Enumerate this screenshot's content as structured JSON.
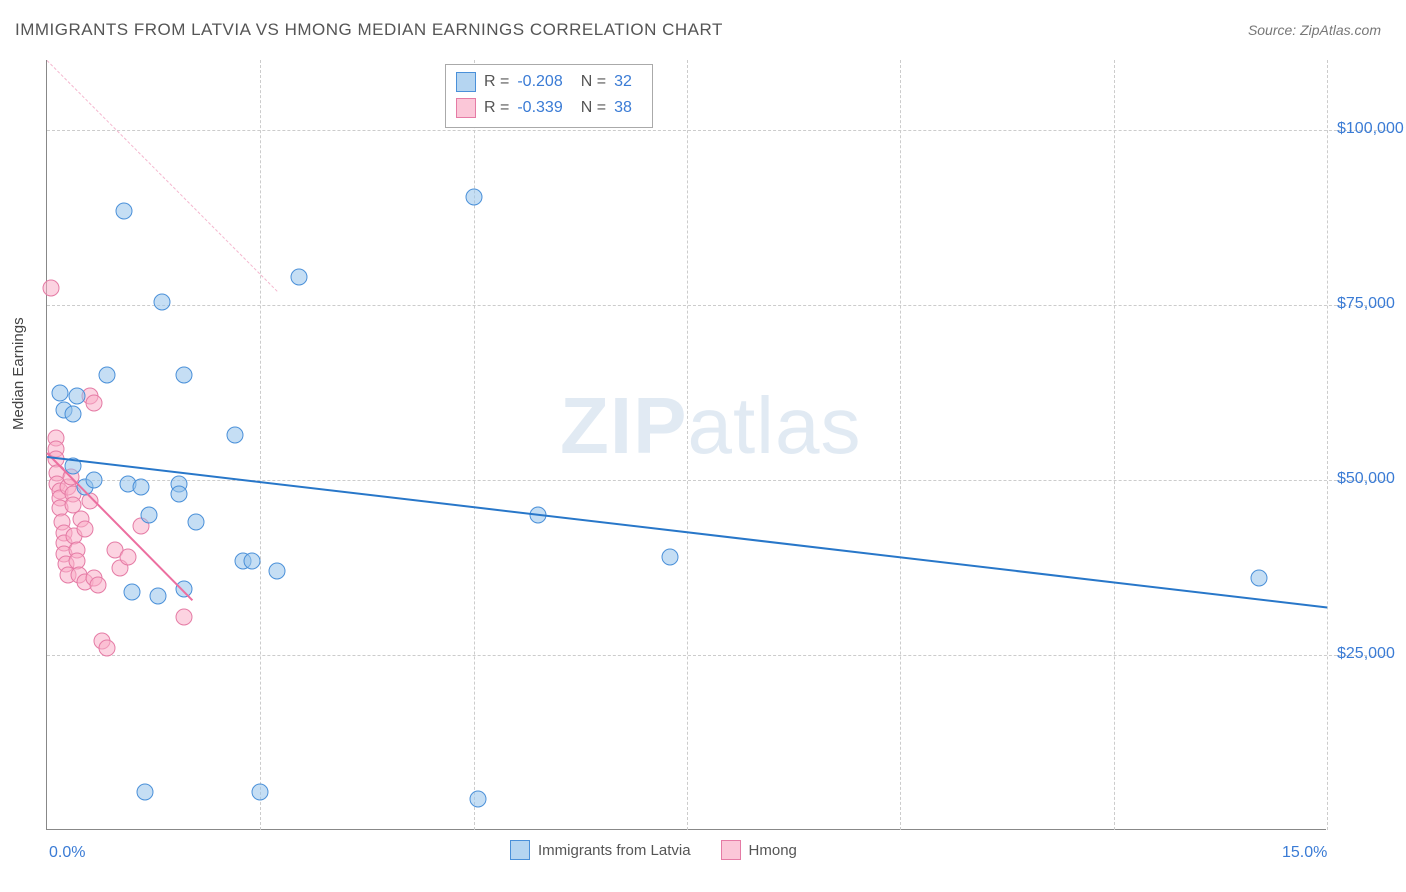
{
  "title": "IMMIGRANTS FROM LATVIA VS HMONG MEDIAN EARNINGS CORRELATION CHART",
  "source": "Source: ZipAtlas.com",
  "y_axis_title": "Median Earnings",
  "watermark_bold": "ZIP",
  "watermark_light": "atlas",
  "chart": {
    "type": "scatter",
    "x_min": 0.0,
    "x_max": 15.0,
    "y_min": 0,
    "y_max": 110000,
    "y_ticks": [
      25000,
      50000,
      75000,
      100000
    ],
    "y_tick_labels": [
      "$25,000",
      "$50,000",
      "$75,000",
      "$100,000"
    ],
    "x_ticks": [
      0.0,
      15.0
    ],
    "x_tick_labels": [
      "0.0%",
      "15.0%"
    ],
    "v_grid_at": [
      0.0,
      2.5,
      5.0,
      7.5,
      10.0,
      12.5,
      15.0
    ],
    "background_color": "#ffffff",
    "grid_color": "#cccccc",
    "marker_size": 17,
    "series": [
      {
        "name": "Immigrants from Latvia",
        "color_fill": "rgba(150,195,235,0.55)",
        "color_stroke": "#4a90d9",
        "R": "-0.208",
        "N": "32",
        "trend": {
          "x1": 0.0,
          "y1": 53500,
          "x2": 15.0,
          "y2": 32000,
          "color": "#2877c9",
          "style": "solid"
        },
        "points": [
          [
            0.15,
            62500
          ],
          [
            0.2,
            60000
          ],
          [
            0.3,
            59500
          ],
          [
            0.35,
            62000
          ],
          [
            0.3,
            52000
          ],
          [
            0.45,
            49000
          ],
          [
            0.55,
            50000
          ],
          [
            0.7,
            65000
          ],
          [
            0.9,
            88500
          ],
          [
            1.0,
            34000
          ],
          [
            0.95,
            49500
          ],
          [
            1.1,
            49000
          ],
          [
            1.2,
            45000
          ],
          [
            1.35,
            75500
          ],
          [
            1.6,
            65000
          ],
          [
            1.55,
            49500
          ],
          [
            1.55,
            48000
          ],
          [
            1.6,
            34500
          ],
          [
            1.75,
            44000
          ],
          [
            1.3,
            33500
          ],
          [
            1.15,
            5500
          ],
          [
            2.2,
            56500
          ],
          [
            2.3,
            38500
          ],
          [
            2.4,
            38500
          ],
          [
            2.5,
            5500
          ],
          [
            2.7,
            37000
          ],
          [
            2.95,
            79000
          ],
          [
            5.0,
            90500
          ],
          [
            5.05,
            4500
          ],
          [
            5.75,
            45000
          ],
          [
            7.3,
            39000
          ],
          [
            14.2,
            36000
          ]
        ]
      },
      {
        "name": "Hmong",
        "color_fill": "rgba(250,175,200,0.55)",
        "color_stroke": "#e57ba5",
        "R": "-0.339",
        "N": "38",
        "trend": {
          "x1": 0.0,
          "y1": 54000,
          "x2": 1.7,
          "y2": 33000,
          "color": "#ec6fa0",
          "style": "solid"
        },
        "trend_dash": {
          "x1": 1.7,
          "y1": 33000,
          "x2": 4.4,
          "y2": 0,
          "color": "#ec6fa0",
          "style": "dashed"
        },
        "points": [
          [
            0.05,
            77500
          ],
          [
            0.1,
            56000
          ],
          [
            0.1,
            54500
          ],
          [
            0.1,
            53000
          ],
          [
            0.12,
            51000
          ],
          [
            0.12,
            49500
          ],
          [
            0.15,
            48500
          ],
          [
            0.15,
            47500
          ],
          [
            0.15,
            46000
          ],
          [
            0.18,
            44000
          ],
          [
            0.2,
            42500
          ],
          [
            0.2,
            41000
          ],
          [
            0.2,
            39500
          ],
          [
            0.22,
            38000
          ],
          [
            0.25,
            36500
          ],
          [
            0.25,
            49000
          ],
          [
            0.28,
            50500
          ],
          [
            0.3,
            48000
          ],
          [
            0.3,
            46500
          ],
          [
            0.32,
            42000
          ],
          [
            0.35,
            40000
          ],
          [
            0.35,
            38500
          ],
          [
            0.38,
            36500
          ],
          [
            0.4,
            44500
          ],
          [
            0.45,
            43000
          ],
          [
            0.45,
            35500
          ],
          [
            0.5,
            47000
          ],
          [
            0.5,
            62000
          ],
          [
            0.55,
            61000
          ],
          [
            0.55,
            36000
          ],
          [
            0.6,
            35000
          ],
          [
            0.65,
            27000
          ],
          [
            0.7,
            26000
          ],
          [
            0.8,
            40000
          ],
          [
            0.85,
            37500
          ],
          [
            0.95,
            39000
          ],
          [
            1.1,
            43500
          ],
          [
            1.6,
            30500
          ]
        ]
      }
    ],
    "legend_items": [
      "Immigrants from Latvia",
      "Hmong"
    ]
  }
}
